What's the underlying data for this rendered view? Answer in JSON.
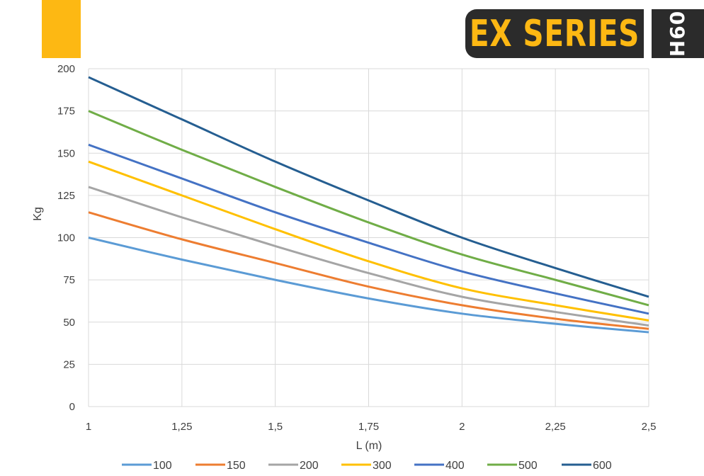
{
  "brand": {
    "name": "EX SERIES",
    "model": "H60",
    "accent_color": "#FDB813",
    "dark_color": "#2b2b2b"
  },
  "chart_data": {
    "type": "line",
    "xlabel": "L (m)",
    "ylabel": "Kg",
    "x": [
      1,
      1.25,
      1.5,
      1.75,
      2,
      2.25,
      2.5
    ],
    "x_tick_labels": [
      "1",
      "1,25",
      "1,5",
      "1,75",
      "2",
      "2,25",
      "2,5"
    ],
    "xlim": [
      1,
      2.5
    ],
    "ylim": [
      0,
      200
    ],
    "y_ticks": [
      0,
      25,
      50,
      75,
      100,
      125,
      150,
      175,
      200
    ],
    "grid": true,
    "legend_position": "bottom",
    "series": [
      {
        "name": "100",
        "color": "#5B9BD5",
        "values": [
          100,
          87,
          75,
          64,
          55,
          49,
          44
        ]
      },
      {
        "name": "150",
        "color": "#ED7D31",
        "values": [
          115,
          99,
          85,
          71,
          60,
          52,
          46
        ]
      },
      {
        "name": "200",
        "color": "#A5A5A5",
        "values": [
          130,
          112,
          95,
          79,
          65,
          56,
          48
        ]
      },
      {
        "name": "300",
        "color": "#FFC000",
        "values": [
          145,
          125,
          105,
          86,
          70,
          60,
          51
        ]
      },
      {
        "name": "400",
        "color": "#4472C4",
        "values": [
          155,
          135,
          115,
          97,
          80,
          67,
          55
        ]
      },
      {
        "name": "500",
        "color": "#70AD47",
        "values": [
          175,
          152,
          130,
          109,
          90,
          75,
          60
        ]
      },
      {
        "name": "600",
        "color": "#255E91",
        "values": [
          195,
          170,
          145,
          122,
          100,
          82,
          65
        ]
      }
    ]
  }
}
